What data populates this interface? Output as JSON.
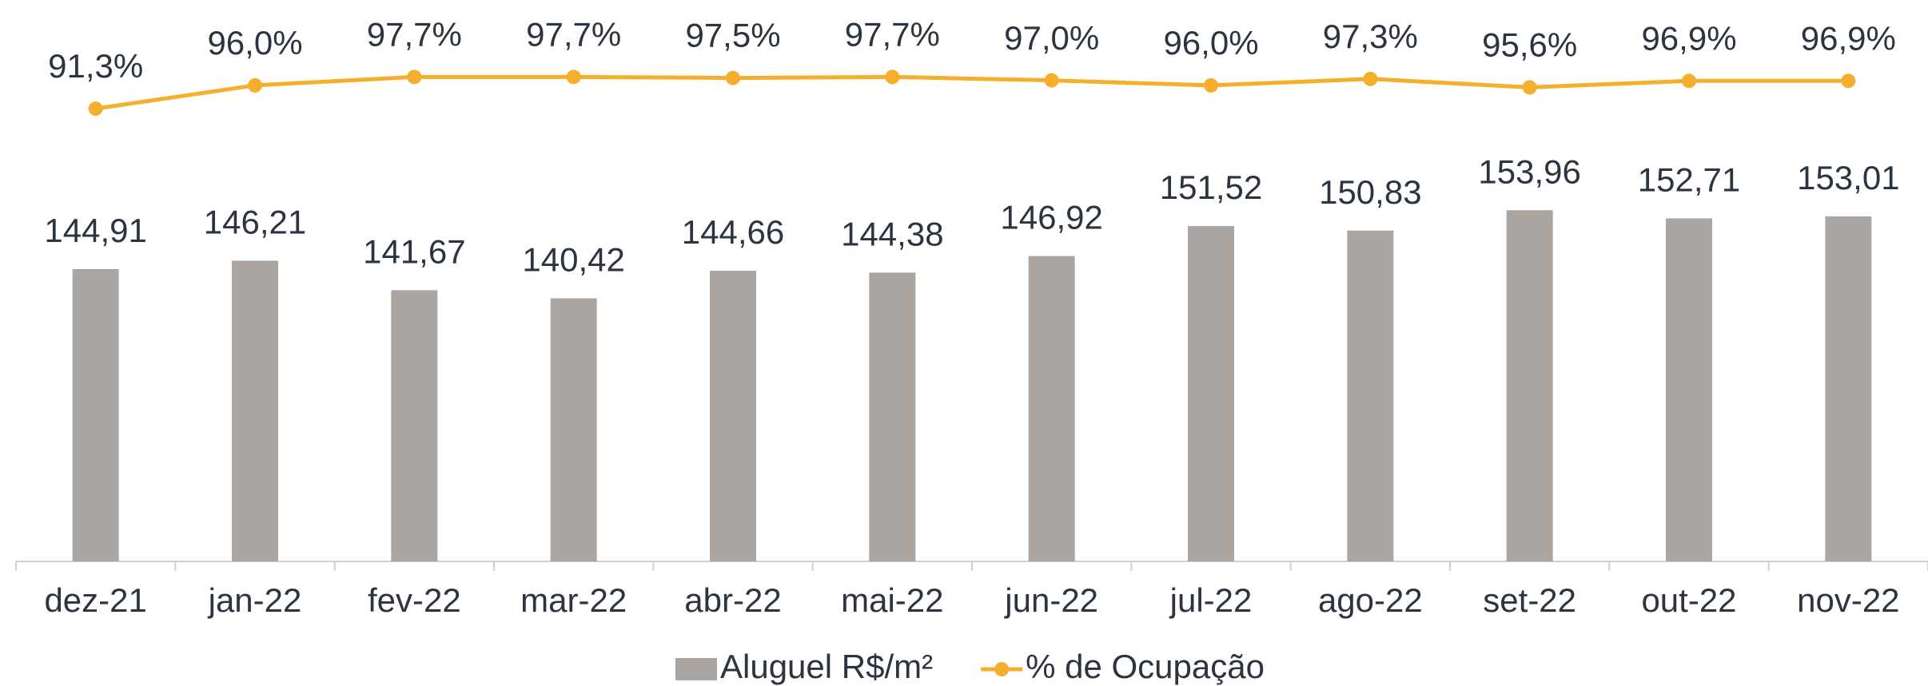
{
  "chart_data": {
    "type": "bar_line",
    "categories": [
      "dez-21",
      "jan-22",
      "fev-22",
      "mar-22",
      "abr-22",
      "mai-22",
      "jun-22",
      "jul-22",
      "ago-22",
      "set-22",
      "out-22",
      "nov-22"
    ],
    "series": [
      {
        "name": "Aluguel R$/m²",
        "type": "bar",
        "color": "#aba6a1",
        "values": [
          144.91,
          146.21,
          141.67,
          140.42,
          144.66,
          144.38,
          146.92,
          151.52,
          150.83,
          153.96,
          152.71,
          153.01
        ],
        "value_labels": [
          "144,91",
          "146,21",
          "141,67",
          "140,42",
          "144,66",
          "144,38",
          "146,92",
          "151,52",
          "150,83",
          "153,96",
          "152,71",
          "153,01"
        ]
      },
      {
        "name": "% de Ocupação",
        "type": "line",
        "axis": "y2",
        "color": "#f6ae2d",
        "values": [
          91.3,
          96.0,
          97.7,
          97.7,
          97.5,
          97.7,
          97.0,
          96.0,
          97.3,
          95.6,
          96.9,
          96.9
        ],
        "value_labels": [
          "91,3%",
          "96,0%",
          "97,7%",
          "97,7%",
          "97,5%",
          "97,7%",
          "97,0%",
          "96,0%",
          "97,3%",
          "95,6%",
          "96,9%",
          "96,9%"
        ]
      }
    ],
    "ylim": [
      100,
      180
    ],
    "y2lim": [
      0,
      105
    ],
    "legend": "bottom"
  }
}
